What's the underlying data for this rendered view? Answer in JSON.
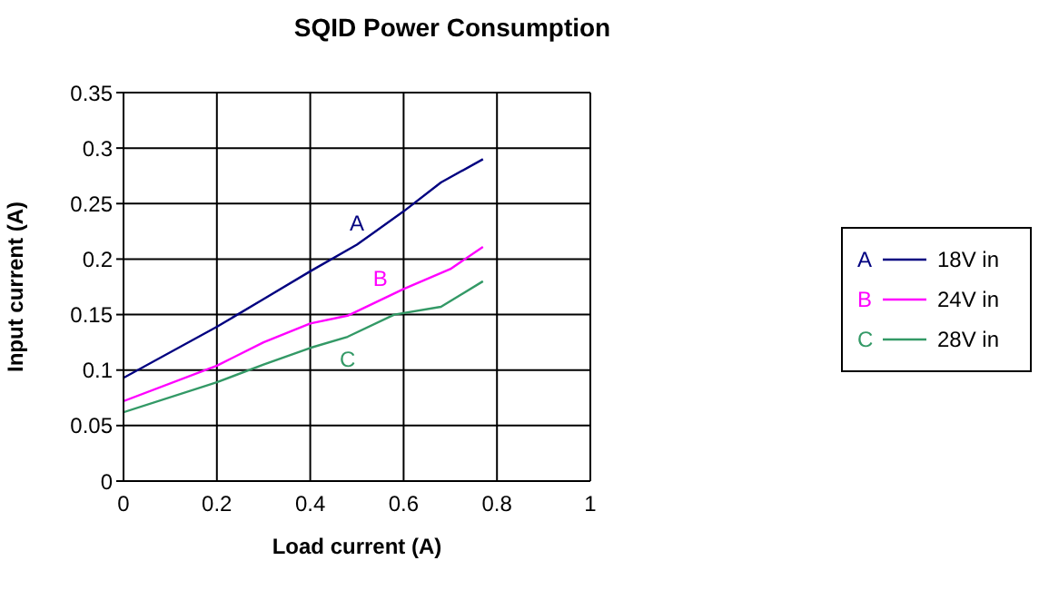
{
  "chart_data": {
    "type": "line",
    "title": "SQID Power Consumption",
    "xlabel": "Load current (A)",
    "ylabel": "Input current (A)",
    "series": [
      {
        "name": "18V in",
        "color": "#000080",
        "x": [
          0,
          0.2,
          0.3,
          0.4,
          0.5,
          0.6,
          0.68,
          0.77
        ],
        "values": [
          0.093,
          0.139,
          0.164,
          0.189,
          0.213,
          0.243,
          0.269,
          0.29
        ]
      },
      {
        "name": "24V in",
        "color": "#ff00ff",
        "x": [
          0,
          0.2,
          0.3,
          0.4,
          0.48,
          0.6,
          0.7,
          0.77
        ],
        "values": [
          0.072,
          0.104,
          0.125,
          0.142,
          0.149,
          0.173,
          0.191,
          0.211
        ]
      },
      {
        "name": "28V in",
        "color": "#339966",
        "x": [
          0,
          0.2,
          0.3,
          0.4,
          0.48,
          0.58,
          0.68,
          0.77
        ],
        "values": [
          0.062,
          0.089,
          0.105,
          0.12,
          0.13,
          0.15,
          0.157,
          0.18
        ]
      }
    ],
    "annotations": [
      {
        "text": "A",
        "x": 0.5,
        "y": 0.213
      },
      {
        "text": "B",
        "x": 0.55,
        "y": 0.163
      },
      {
        "text": "C",
        "x": 0.48,
        "y": 0.13
      }
    ],
    "xlim": [
      0,
      1
    ],
    "xticks": [
      0,
      0.2,
      0.4,
      0.6,
      0.8,
      1
    ],
    "ylim": [
      0,
      0.35
    ],
    "yticks": [
      0,
      0.05,
      0.1,
      0.15,
      0.2,
      0.25,
      0.3,
      0.35
    ],
    "grid": true,
    "legend": "right",
    "marker": "none",
    "line_style": "solid"
  }
}
